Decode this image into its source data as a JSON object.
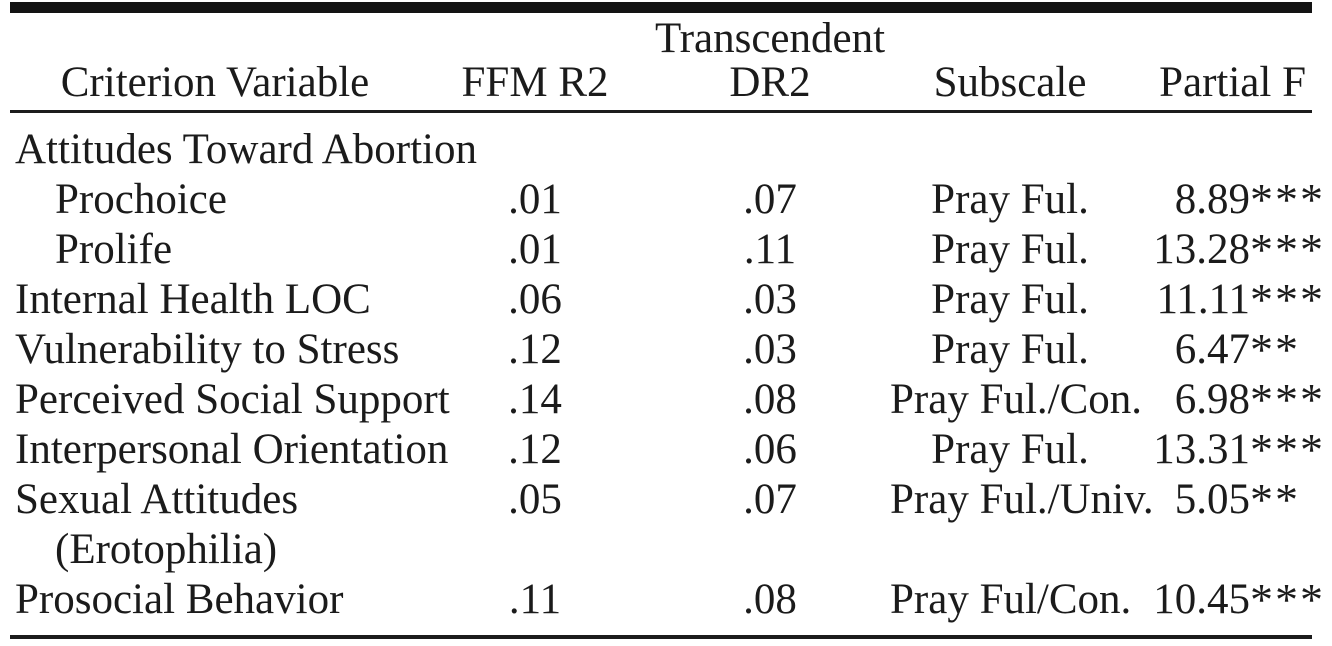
{
  "page": {
    "background_color": "#ffffff",
    "text_color": "#1b1b1b",
    "rule_color": "#1c1c1c"
  },
  "table": {
    "spanner_label": "Transcendent",
    "columns": {
      "criterion": "Criterion Variable",
      "ffm_r2": "FFM R2",
      "dr2": "DR2",
      "subscale": "Subscale",
      "partial_f": "Partial F"
    },
    "rows": [
      {
        "label": "Attitudes Toward Abortion",
        "ffm_r2": "",
        "dr2": "",
        "subscale": "",
        "partial_f": "",
        "stars": ""
      },
      {
        "label": "Prochoice",
        "ffm_r2": ".01",
        "dr2": ".07",
        "subscale": "Pray Ful.",
        "partial_f": "8.89",
        "stars": "***"
      },
      {
        "label": "Prolife",
        "ffm_r2": ".01",
        "dr2": ".11",
        "subscale": "Pray Ful.",
        "partial_f": "13.28",
        "stars": "***"
      },
      {
        "label": "Internal Health LOC",
        "ffm_r2": ".06",
        "dr2": ".03",
        "subscale": "Pray Ful.",
        "partial_f": "11.11",
        "stars": "***"
      },
      {
        "label": "Vulnerability to Stress",
        "ffm_r2": ".12",
        "dr2": ".03",
        "subscale": "Pray Ful.",
        "partial_f": "6.47",
        "stars": "**"
      },
      {
        "label": "Perceived Social Support",
        "ffm_r2": ".14",
        "dr2": ".08",
        "subscale": "Pray Ful./Con.",
        "partial_f": "6.98",
        "stars": "***"
      },
      {
        "label": "Interpersonal Orientation",
        "ffm_r2": ".12",
        "dr2": ".06",
        "subscale": "Pray Ful.",
        "partial_f": "13.31",
        "stars": "***"
      },
      {
        "label": "Sexual Attitudes",
        "ffm_r2": ".05",
        "dr2": ".07",
        "subscale": "Pray Ful./Univ.",
        "partial_f": "5.05",
        "stars": "**"
      },
      {
        "label": "(Erotophilia)",
        "ffm_r2": "",
        "dr2": "",
        "subscale": "",
        "partial_f": "",
        "stars": ""
      },
      {
        "label": "Prosocial Behavior",
        "ffm_r2": ".11",
        "dr2": ".08",
        "subscale": "Pray Ful/Con.",
        "partial_f": "10.45",
        "stars": "***"
      }
    ]
  }
}
